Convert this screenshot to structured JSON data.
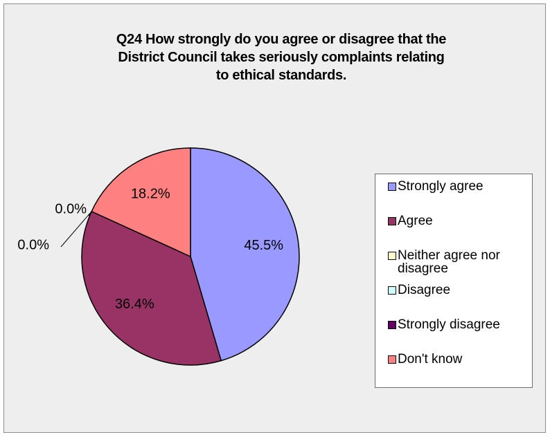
{
  "chart_data": {
    "type": "pie",
    "title": "Q24 How strongly do you agree or disagree  that the District Council takes seriously complaints relating to ethical standards.",
    "title_lines": [
      "Q24 How strongly do you agree or disagree  that the",
      "District Council takes seriously complaints relating",
      "to ethical standards."
    ],
    "start_angle_deg": 0,
    "direction": "clockwise",
    "legend_position": "right",
    "slices": [
      {
        "label": "Strongly agree",
        "value": 45.5,
        "value_label": "45.5%",
        "color": "#9999ff"
      },
      {
        "label": "Agree",
        "value": 36.4,
        "value_label": "36.4%",
        "color": "#993366"
      },
      {
        "label": "Neither agree nor disagree",
        "value": 0.0,
        "value_label": "0.0%",
        "color": "#ffffcc"
      },
      {
        "label": "Disagree",
        "value": 0.0,
        "value_label": "0.0%",
        "color": "#ccffff"
      },
      {
        "label": "Strongly disagree",
        "value": 0.0,
        "value_label": "0.0%",
        "color": "#660066"
      },
      {
        "label": "Don't know",
        "value": 18.2,
        "value_label": "18.2%",
        "color": "#ff8080"
      }
    ]
  },
  "legend": {
    "items": [
      {
        "label_lines": [
          "Strongly agree"
        ]
      },
      {
        "label_lines": [
          "Agree"
        ]
      },
      {
        "label_lines": [
          "Neither agree nor",
          "disagree"
        ]
      },
      {
        "label_lines": [
          "Disagree"
        ]
      },
      {
        "label_lines": [
          "Strongly disagree"
        ]
      },
      {
        "label_lines": [
          "Don't know"
        ]
      }
    ]
  }
}
